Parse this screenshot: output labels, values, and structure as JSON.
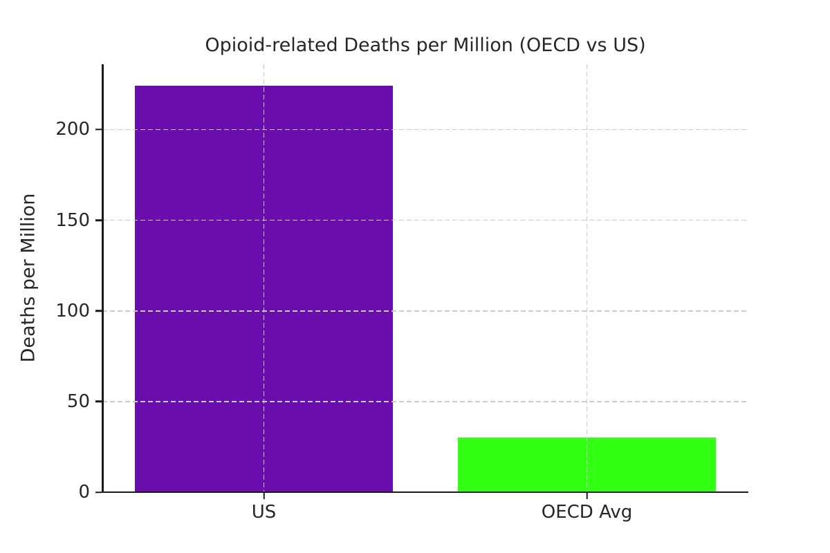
{
  "chart_data": {
    "type": "bar",
    "title": "Opioid-related Deaths per Million (OECD vs US)",
    "categories": [
      "US",
      "OECD Avg"
    ],
    "values": [
      224,
      30
    ],
    "bar_colors": [
      "#6a0dad",
      "#33ff14"
    ],
    "xlabel": "",
    "ylabel": "Deaths per Million",
    "yticks": [
      0,
      50,
      100,
      150,
      200
    ],
    "ylim": [
      0,
      236
    ],
    "grid": true,
    "grid_line_style": "dashed",
    "grid_drawn_above_bars": true,
    "grid_color": "#cbcbcb",
    "axis_color": "#1a1a1a",
    "text_color": "#262626",
    "background_color": "#ffffff",
    "legend": "none",
    "bar_width_fraction": 0.8
  }
}
